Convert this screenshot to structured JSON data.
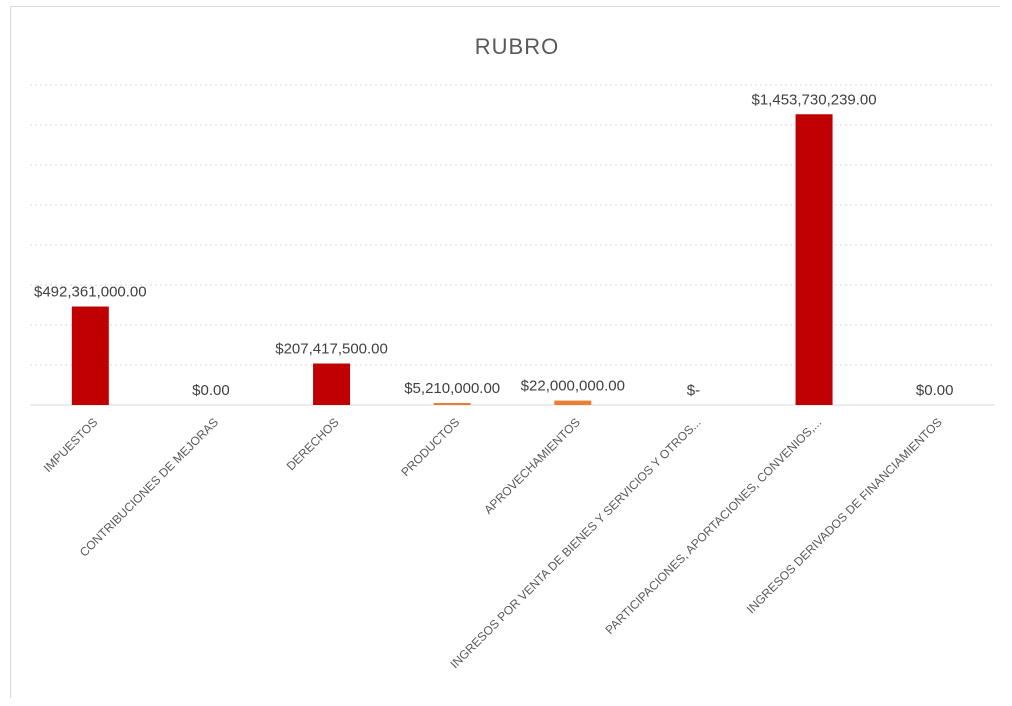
{
  "chart_data": {
    "type": "bar",
    "title": "RUBRO",
    "xlabel": "",
    "ylabel": "",
    "ylim": [
      0,
      1600000000
    ],
    "grid": true,
    "legend": "none",
    "categories": [
      "IMPUESTOS",
      "CONTRIBUCIONES DE MEJORAS",
      "DERECHOS",
      "PRODUCTOS",
      "APROVECHAMIENTOS",
      "INGRESOS POR VENTA DE BIENES Y SERVICIOS Y OTROS...",
      "PARTICIPACIONES, APORTACIONES, CONVENIOS,...",
      "INGRESOS DERIVADOS DE FINANCIAMIENTOS"
    ],
    "values": [
      492361000,
      0,
      207417500,
      5210000,
      22000000,
      0,
      1453730239,
      0
    ],
    "data_labels": [
      "$492,361,000.00",
      "$0.00",
      "$207,417,500.00",
      "$5,210,000.00",
      "$22,000,000.00",
      "$-",
      "$1,453,730,239.00",
      "$0.00"
    ],
    "colors": [
      "#c00000",
      "#c00000",
      "#c00000",
      "#ed7d31",
      "#ed7d31",
      "#c00000",
      "#c00000",
      "#c00000"
    ]
  }
}
